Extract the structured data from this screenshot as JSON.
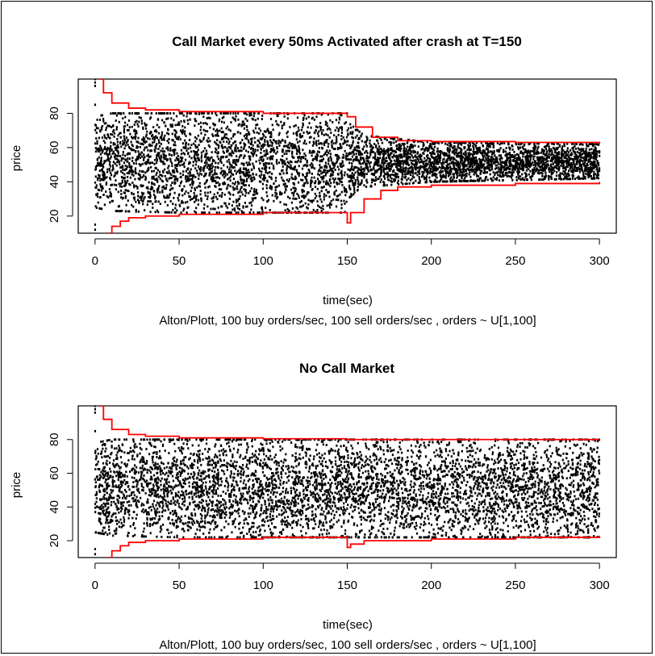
{
  "colors": {
    "points": "#000000",
    "bounds": "#ff0000",
    "axis": "#000000"
  },
  "chart_data": [
    {
      "type": "scatter",
      "title": "Call Market every 50ms Activated after crash at T=150",
      "xlabel": "time(sec)",
      "ylabel": "price",
      "subtitle": "Alton/Plott, 100 buy orders/sec, 100 sell orders/sec , orders ~ U[1,100]",
      "xlim": [
        0,
        300
      ],
      "ylim": [
        10,
        100
      ],
      "xticks": [
        "0",
        "50",
        "100",
        "150",
        "200",
        "250",
        "300"
      ],
      "yticks": [
        "20",
        "40",
        "60",
        "80"
      ],
      "series": [
        {
          "kind": "trade-prices",
          "segments": [
            {
              "x": [
                0,
                150
              ],
              "range": [
                [
                  0,
                  25,
                  78
                ],
                [
                  10,
                  23,
                  80
                ],
                [
                  50,
                  22,
                  80
                ],
                [
                  149,
                  22,
                  80
                ]
              ]
            },
            {
              "x": [
                150,
                300
              ],
              "range": [
                [
                  150,
                  30,
                  75
                ],
                [
                  160,
                  37,
                  67
                ],
                [
                  200,
                  40,
                  63
                ],
                [
                  300,
                  42,
                  62
                ]
              ]
            }
          ]
        },
        {
          "kind": "upper-bound",
          "x": [
            2,
            5,
            10,
            20,
            30,
            50,
            100,
            148,
            150,
            155,
            165,
            180,
            200,
            250,
            300
          ],
          "y": [
            100,
            92,
            86,
            83,
            82,
            81,
            80,
            80,
            78,
            72,
            66,
            64,
            63.5,
            63,
            62
          ]
        },
        {
          "kind": "lower-bound",
          "x": [
            8,
            10,
            15,
            20,
            30,
            50,
            100,
            148,
            150,
            152,
            160,
            170,
            180,
            200,
            250,
            300
          ],
          "y": [
            10,
            14,
            17,
            19,
            20,
            21,
            22,
            22,
            16,
            22,
            30,
            35,
            37,
            38,
            39,
            40
          ]
        }
      ]
    },
    {
      "type": "scatter",
      "title": "No Call Market",
      "xlabel": "time(sec)",
      "ylabel": "price",
      "subtitle": "Alton/Plott, 100 buy orders/sec, 100 sell orders/sec , orders ~ U[1,100]",
      "xlim": [
        0,
        300
      ],
      "ylim": [
        10,
        100
      ],
      "xticks": [
        "0",
        "50",
        "100",
        "150",
        "200",
        "250",
        "300"
      ],
      "yticks": [
        "20",
        "40",
        "60",
        "80"
      ],
      "series": [
        {
          "kind": "trade-prices",
          "segments": [
            {
              "x": [
                0,
                300
              ],
              "range": [
                [
                  0,
                  25,
                  78
                ],
                [
                  10,
                  23,
                  80
                ],
                [
                  50,
                  22,
                  80
                ],
                [
                  300,
                  22,
                  80
                ]
              ]
            }
          ]
        },
        {
          "kind": "upper-bound",
          "x": [
            2,
            5,
            10,
            20,
            30,
            50,
            100,
            150,
            200,
            250,
            300
          ],
          "y": [
            100,
            92,
            86,
            83,
            82,
            81,
            80.5,
            80,
            80,
            80,
            80
          ]
        },
        {
          "kind": "lower-bound",
          "x": [
            8,
            10,
            15,
            20,
            30,
            50,
            100,
            148,
            150,
            152,
            160,
            200,
            250,
            300
          ],
          "y": [
            10,
            14,
            17,
            19,
            20,
            21,
            22,
            22,
            16,
            18,
            20,
            21,
            22,
            23
          ]
        }
      ]
    }
  ]
}
